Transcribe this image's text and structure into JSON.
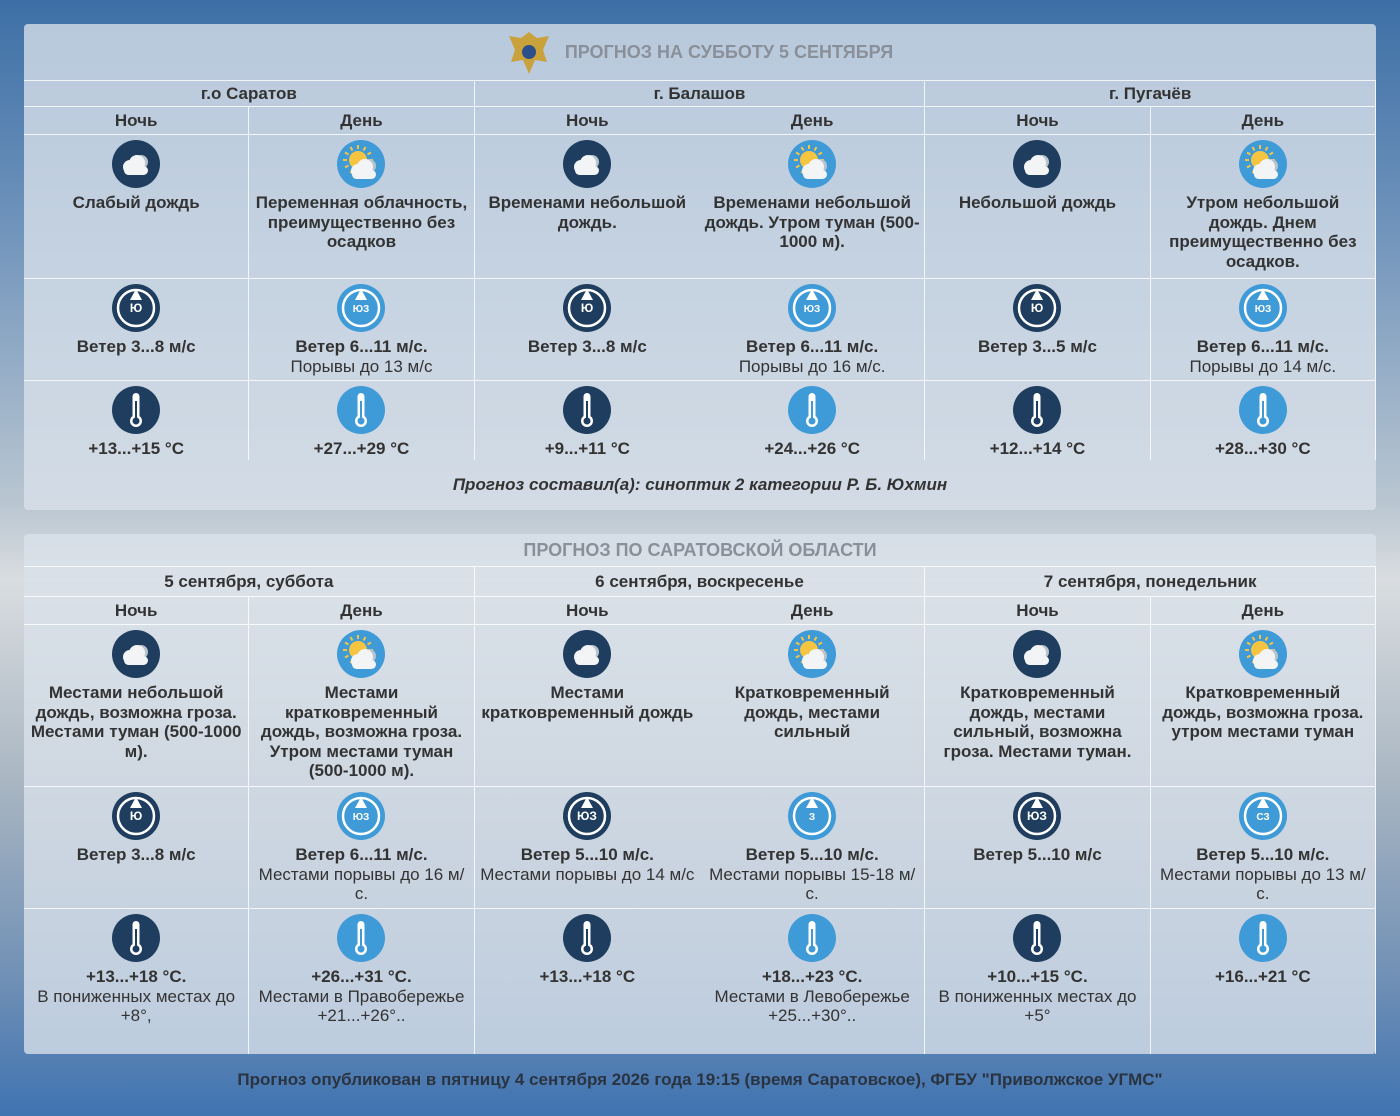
{
  "panel1": {
    "title": "ПРОГНОЗ НА СУББОТУ 5 СЕНТЯБРЯ",
    "columns": [
      {
        "name": "г.о Саратов",
        "periods": [
          {
            "label": "Ночь",
            "description": "Слабый дождь",
            "wind_dir": "Ю",
            "wind": "Ветер 3...8 м/с",
            "temp": "+13...+15 °C"
          },
          {
            "label": "День",
            "description": "Переменная облачность, преимущественно без осадков",
            "wind_dir": "ЮЗ",
            "wind": "Ветер 6...11 м/с.",
            "gusts": "Порывы до 13 м/с",
            "temp": "+27...+29 °C"
          }
        ]
      },
      {
        "name": "г. Балашов",
        "periods": [
          {
            "label": "Ночь",
            "description": "Временами небольшой дождь.",
            "wind_dir": "Ю",
            "wind": "Ветер 3...8 м/с",
            "temp": "+9...+11 °C"
          },
          {
            "label": "День",
            "description": "Временами небольшой дождь. Утром туман (500-1000 м).",
            "wind_dir": "ЮЗ",
            "wind": "Ветер 6...11 м/с.",
            "gusts": "Порывы до 16 м/с.",
            "temp": "+24...+26 °C"
          }
        ]
      },
      {
        "name": "г. Пугачёв",
        "periods": [
          {
            "label": "Ночь",
            "description": "Небольшой дождь",
            "wind_dir": "Ю",
            "wind": "Ветер 3...5 м/с",
            "temp": "+12...+14 °C"
          },
          {
            "label": "День",
            "description": "Утром небольшой дождь. Днем преимущественно без осадков.",
            "wind_dir": "ЮЗ",
            "wind": "Ветер 6...11 м/с.",
            "gusts": "Порывы до 14 м/с.",
            "temp": "+28...+30 °C"
          }
        ]
      }
    ],
    "author": "Прогноз составил(а): синоптик 2 категории Р. Б. Юхмин"
  },
  "panel2": {
    "title": "ПРОГНОЗ ПО САРАТОВСКОЙ ОБЛАСТИ",
    "columns": [
      {
        "name": "5 сентября, суббота",
        "periods": [
          {
            "label": "Ночь",
            "description": "Местами небольшой дождь, возможна гроза. Местами туман (500-1000 м).",
            "wind_dir": "Ю",
            "wind": "Ветер 3...8 м/с",
            "temp": "+13...+18 °C.",
            "temp_note": "В пониженных местах до +8°,"
          },
          {
            "label": "День",
            "description": "Местами кратковременный дождь, возможна гроза. Утром местами туман (500-1000 м).",
            "wind_dir": "ЮЗ",
            "wind": "Ветер 6...11 м/с.",
            "gusts": "Местами порывы до 16 м/с.",
            "temp": "+26...+31 °C.",
            "temp_note": "Местами в Правобережье +21...+26°.."
          }
        ]
      },
      {
        "name": "6 сентября, воскресенье",
        "periods": [
          {
            "label": "Ночь",
            "description": "Местами кратковременный дождь",
            "wind_dir": "ЮЗ",
            "wind": "Ветер 5...10 м/с.",
            "gusts": "Местами порывы до 14 м/с",
            "temp": "+13...+18 °C"
          },
          {
            "label": "День",
            "description": "Кратковременный дождь, местами сильный",
            "wind_dir": "З",
            "wind": "Ветер 5...10 м/с.",
            "gusts": "Местами порывы 15-18 м/с.",
            "temp": "+18...+23 °C.",
            "temp_note": "Местами в Левобережье +25...+30°.."
          }
        ]
      },
      {
        "name": "7 сентября, понедельник",
        "periods": [
          {
            "label": "Ночь",
            "description": "Кратковременный дождь, местами сильный, возможна гроза. Местами туман.",
            "wind_dir": "ЮЗ",
            "wind": "Ветер 5...10 м/с",
            "temp": "+10...+15 °C.",
            "temp_note": "В пониженных местах до +5°"
          },
          {
            "label": "День",
            "description": "Кратковременный дождь, возможна гроза. утром местами туман",
            "wind_dir": "СЗ",
            "wind": "Ветер 5...10 м/с.",
            "gusts": "Местами порывы до 13 м/с.",
            "temp": "+16...+21 °C"
          }
        ]
      }
    ]
  },
  "footer": "Прогноз опубликован в пятницу 4 сентября 2026 года 19:15 (время Саратовское), ФГБУ \"Приволжское УГМС\""
}
